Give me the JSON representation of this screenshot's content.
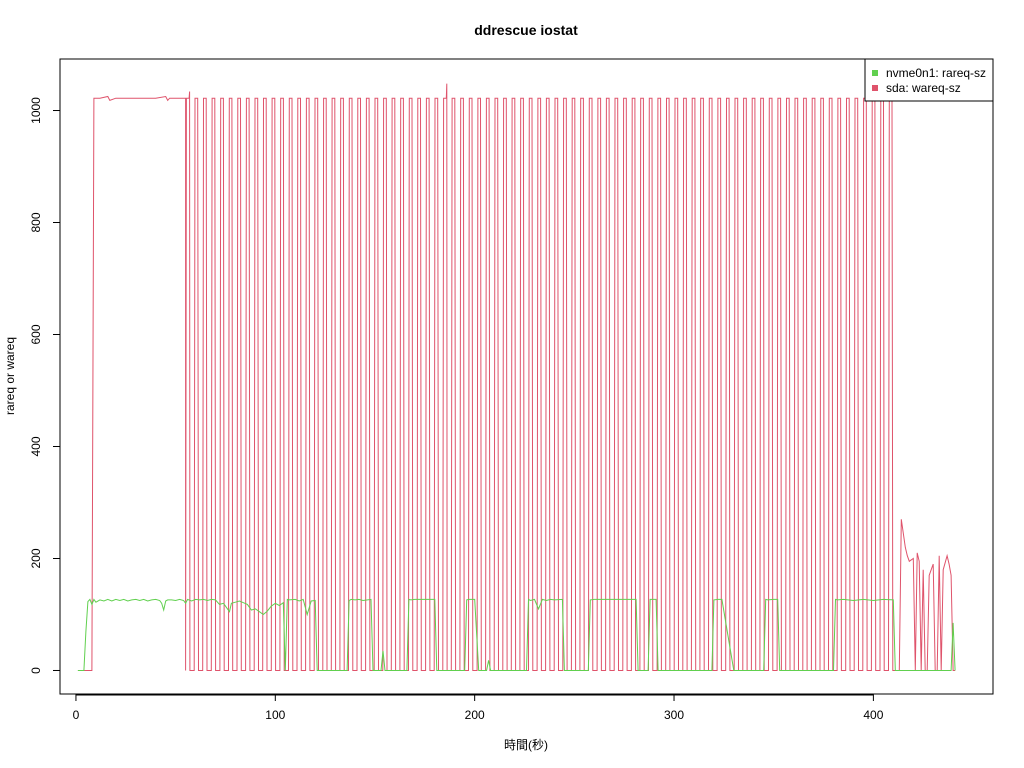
{
  "chart_data": {
    "type": "line",
    "title": "ddrescue iostat",
    "xlabel": "時間(秒)",
    "ylabel": "rareq or wareq",
    "xlim": [
      -8,
      460
    ],
    "ylim": [
      -42,
      1092
    ],
    "xticks": [
      0,
      100,
      200,
      300,
      400
    ],
    "yticks": [
      0,
      200,
      400,
      600,
      800,
      1000
    ],
    "grid": false,
    "legend_position": "top-right",
    "series": [
      {
        "name": "nvme0n1: rareq-sz",
        "color": "#61d04f",
        "x": [
          1,
          3,
          4,
          5,
          6,
          7,
          8,
          9,
          10,
          12,
          14,
          16,
          18,
          20,
          22,
          24,
          26,
          28,
          30,
          32,
          34,
          36,
          38,
          40,
          42,
          43,
          44,
          45,
          46,
          48,
          50,
          52,
          54,
          55,
          56,
          58,
          60,
          62,
          64,
          66,
          68,
          70,
          72,
          74,
          76,
          77,
          78,
          80,
          82,
          84,
          86,
          88,
          90,
          92,
          94,
          96,
          98,
          100,
          102,
          104,
          105,
          106,
          107,
          110,
          112,
          114,
          116,
          118,
          120,
          121,
          122,
          130,
          136,
          137,
          138,
          140,
          142,
          144,
          148,
          149,
          150,
          153,
          154,
          155,
          160,
          166,
          167,
          168,
          170,
          180,
          181,
          182,
          186,
          195,
          196,
          197,
          200,
          202,
          206,
          207,
          208,
          220,
          226,
          227,
          228,
          230,
          232,
          234,
          236,
          238,
          240,
          244,
          245,
          246,
          255,
          257,
          258,
          260,
          270,
          280,
          281,
          282,
          285,
          287,
          288,
          290,
          291,
          292,
          300,
          310,
          318,
          319,
          320,
          322,
          324,
          330,
          340,
          345,
          346,
          347,
          350,
          352,
          353,
          354,
          365,
          370,
          380,
          381,
          382,
          385,
          390,
          395,
          400,
          405,
          410,
          411,
          412,
          414,
          420,
          430,
          438,
          439,
          440,
          441
        ],
        "y": [
          0,
          0,
          0,
          70,
          123,
          127,
          118,
          127,
          122,
          126,
          124,
          127,
          124,
          127,
          125,
          127,
          124,
          126,
          127,
          125,
          127,
          124,
          126,
          127,
          125,
          120,
          108,
          124,
          126,
          126,
          125,
          127,
          125,
          120,
          127,
          124,
          127,
          126,
          127,
          125,
          127,
          126,
          118,
          120,
          110,
          105,
          120,
          122,
          124,
          121,
          118,
          108,
          110,
          105,
          100,
          106,
          115,
          120,
          116,
          121,
          0,
          127,
          126,
          127,
          124,
          127,
          100,
          124,
          125,
          0,
          0,
          0,
          0,
          125,
          127,
          126,
          127,
          125,
          127,
          0,
          0,
          0,
          35,
          0,
          0,
          0,
          127,
          126,
          127,
          127,
          0,
          0,
          0,
          0,
          126,
          127,
          127,
          0,
          0,
          18,
          0,
          0,
          0,
          127,
          125,
          127,
          110,
          127,
          125,
          127,
          126,
          127,
          0,
          0,
          0,
          0,
          126,
          127,
          127,
          127,
          127,
          0,
          0,
          0,
          127,
          127,
          127,
          0,
          0,
          0,
          0,
          0,
          126,
          127,
          127,
          0,
          0,
          0,
          127,
          126,
          127,
          127,
          0,
          0,
          0,
          0,
          0,
          127,
          126,
          127,
          125,
          127,
          125,
          127,
          126,
          0,
          0,
          0,
          0,
          0,
          0,
          0,
          85,
          0
        ]
      },
      {
        "name": "sda: wareq-sz",
        "color": "#df536b",
        "x": [
          1,
          5,
          8,
          9,
          12,
          16,
          17,
          20,
          30,
          40,
          45,
          46,
          47,
          55
        ],
        "y": [
          0,
          0,
          0,
          1022,
          1022,
          1025,
          1018,
          1022,
          1022,
          1022,
          1025,
          1018,
          1022,
          1022
        ],
        "pulse_segment": {
          "x_start": 55,
          "x_end": 413,
          "period": 4.3,
          "high": 1022,
          "low": 0,
          "spikes": [
            {
              "x": 57,
              "y": 1034
            },
            {
              "x": 186,
              "y": 1048
            }
          ]
        },
        "tail": {
          "x": [
            413,
            414,
            416,
            417,
            418,
            420,
            421,
            422,
            423,
            424,
            425,
            426,
            427,
            428,
            430,
            431,
            432,
            433,
            434,
            435,
            437,
            438,
            439,
            440,
            441
          ],
          "y": [
            0,
            270,
            220,
            205,
            195,
            200,
            0,
            210,
            195,
            0,
            180,
            0,
            0,
            170,
            190,
            0,
            0,
            205,
            0,
            180,
            205,
            190,
            170,
            0,
            0
          ]
        }
      }
    ]
  }
}
